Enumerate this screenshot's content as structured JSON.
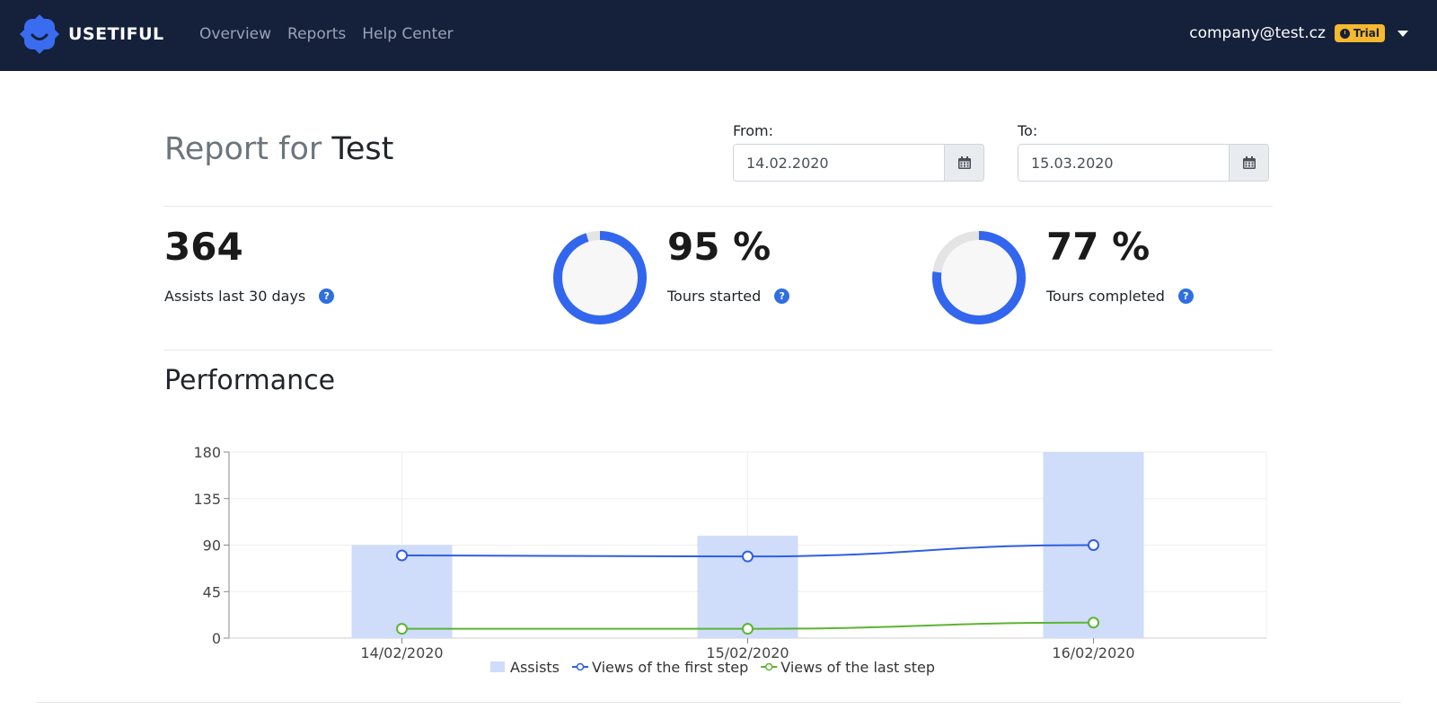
{
  "app": {
    "brand": "USETIFUL"
  },
  "nav": {
    "items": [
      "Overview",
      "Reports",
      "Help Center"
    ]
  },
  "user": {
    "email": "company@test.cz",
    "badge": "Trial"
  },
  "report": {
    "title_prefix": "Report for",
    "project": "Test"
  },
  "filters": {
    "from_label": "From:",
    "from_value": "14.02.2020",
    "to_label": "To:",
    "to_value": "15.03.2020"
  },
  "stats": {
    "assists": {
      "value": "364",
      "label": "Assists last 30 days"
    },
    "tours_started": {
      "value": "95 %",
      "label": "Tours started",
      "fraction": 0.95
    },
    "tours_completed": {
      "value": "77 %",
      "label": "Tours completed",
      "fraction": 0.77
    }
  },
  "performance": {
    "title": "Performance"
  },
  "colors": {
    "navbar": "#15203b",
    "accent": "#3366ee",
    "bar": "#cfdcfa",
    "line_first": "#2f5fe0",
    "line_last": "#5cb531",
    "trial": "#f5b82e"
  },
  "chart_data": {
    "type": "bar",
    "categories": [
      "14/02/2020",
      "15/02/2020",
      "16/02/2020"
    ],
    "series": [
      {
        "name": "Assists",
        "type": "bar",
        "values": [
          90,
          99,
          180
        ]
      },
      {
        "name": "Views of the first step",
        "type": "line",
        "values": [
          80,
          79,
          90
        ]
      },
      {
        "name": "Views of the last step",
        "type": "line",
        "values": [
          9,
          9,
          15
        ]
      }
    ],
    "yticks": [
      "0",
      "45",
      "90",
      "135",
      "180"
    ],
    "ylim": [
      0,
      180
    ],
    "grid": true,
    "legend": "bottom-center"
  }
}
